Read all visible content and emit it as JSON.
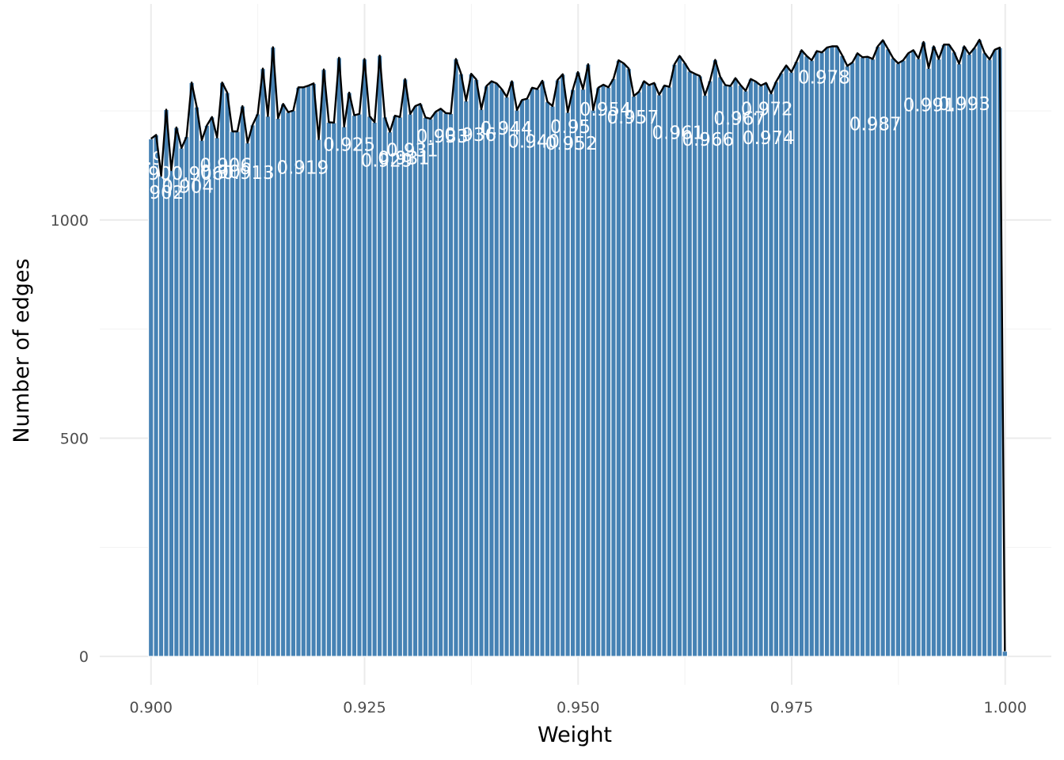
{
  "chart_data": {
    "type": "bar",
    "title": "",
    "xlabel": "Weight",
    "ylabel": "Number of edges",
    "xlim": [
      0.894,
      1.0054
    ],
    "ylim": [
      -65,
      1495
    ],
    "x_ticks": [
      0.9,
      0.925,
      0.95,
      0.975,
      1.0
    ],
    "x_tick_labels": [
      "0.900",
      "0.925",
      "0.950",
      "0.975",
      "1.000"
    ],
    "y_ticks": [
      0,
      500,
      1000
    ],
    "y_tick_labels": [
      "0",
      "500",
      "1000"
    ],
    "bin_width": 0.000595,
    "grid": true,
    "colors": {
      "bar": "#4682b4",
      "line": "#000000",
      "label": "#ffffff"
    },
    "bins": [
      [
        0.9,
        1186
      ],
      [
        0.900595,
        1195
      ],
      [
        0.90119,
        1101
      ],
      [
        0.901785,
        1253
      ],
      [
        0.90238,
        1114
      ],
      [
        0.902975,
        1212
      ],
      [
        0.90357,
        1165
      ],
      [
        0.904165,
        1191
      ],
      [
        0.90476,
        1315
      ],
      [
        0.905355,
        1259
      ],
      [
        0.90595,
        1183
      ],
      [
        0.906545,
        1217
      ],
      [
        0.90714,
        1236
      ],
      [
        0.907735,
        1189
      ],
      [
        0.90833,
        1315
      ],
      [
        0.908925,
        1292
      ],
      [
        0.90952,
        1203
      ],
      [
        0.910115,
        1203
      ],
      [
        0.91071,
        1261
      ],
      [
        0.911305,
        1177
      ],
      [
        0.9119,
        1218
      ],
      [
        0.912495,
        1243
      ],
      [
        0.91309,
        1347
      ],
      [
        0.913685,
        1238
      ],
      [
        0.91428,
        1396
      ],
      [
        0.914875,
        1233
      ],
      [
        0.91547,
        1266
      ],
      [
        0.916065,
        1247
      ],
      [
        0.91666,
        1251
      ],
      [
        0.917255,
        1304
      ],
      [
        0.91785,
        1304
      ],
      [
        0.918445,
        1308
      ],
      [
        0.91904,
        1313
      ],
      [
        0.919635,
        1185
      ],
      [
        0.92023,
        1345
      ],
      [
        0.920825,
        1224
      ],
      [
        0.92142,
        1223
      ],
      [
        0.922015,
        1372
      ],
      [
        0.92261,
        1214
      ],
      [
        0.923205,
        1292
      ],
      [
        0.9238,
        1240
      ],
      [
        0.924395,
        1243
      ],
      [
        0.92499,
        1369
      ],
      [
        0.925585,
        1238
      ],
      [
        0.92618,
        1224
      ],
      [
        0.926775,
        1377
      ],
      [
        0.92737,
        1236
      ],
      [
        0.927965,
        1202
      ],
      [
        0.92856,
        1239
      ],
      [
        0.929155,
        1236
      ],
      [
        0.92975,
        1323
      ],
      [
        0.930345,
        1243
      ],
      [
        0.93094,
        1261
      ],
      [
        0.931535,
        1266
      ],
      [
        0.93213,
        1235
      ],
      [
        0.932725,
        1232
      ],
      [
        0.93332,
        1248
      ],
      [
        0.933915,
        1255
      ],
      [
        0.93451,
        1245
      ],
      [
        0.935105,
        1244
      ],
      [
        0.9357,
        1369
      ],
      [
        0.936295,
        1335
      ],
      [
        0.93689,
        1273
      ],
      [
        0.937485,
        1335
      ],
      [
        0.93808,
        1322
      ],
      [
        0.938675,
        1254
      ],
      [
        0.93927,
        1307
      ],
      [
        0.939865,
        1318
      ],
      [
        0.94046,
        1313
      ],
      [
        0.941055,
        1300
      ],
      [
        0.94165,
        1282
      ],
      [
        0.942245,
        1318
      ],
      [
        0.94284,
        1252
      ],
      [
        0.943435,
        1275
      ],
      [
        0.94403,
        1278
      ],
      [
        0.944625,
        1303
      ],
      [
        0.94522,
        1300
      ],
      [
        0.945815,
        1319
      ],
      [
        0.94641,
        1271
      ],
      [
        0.947005,
        1261
      ],
      [
        0.9476,
        1321
      ],
      [
        0.948195,
        1334
      ],
      [
        0.94879,
        1247
      ],
      [
        0.949385,
        1299
      ],
      [
        0.94998,
        1339
      ],
      [
        0.950575,
        1300
      ],
      [
        0.95117,
        1357
      ],
      [
        0.951765,
        1252
      ],
      [
        0.95236,
        1303
      ],
      [
        0.952955,
        1310
      ],
      [
        0.95355,
        1304
      ],
      [
        0.954145,
        1324
      ],
      [
        0.95474,
        1366
      ],
      [
        0.955335,
        1359
      ],
      [
        0.95593,
        1347
      ],
      [
        0.956525,
        1284
      ],
      [
        0.95712,
        1294
      ],
      [
        0.957715,
        1318
      ],
      [
        0.95831,
        1309
      ],
      [
        0.958905,
        1314
      ],
      [
        0.9595,
        1287
      ],
      [
        0.960095,
        1308
      ],
      [
        0.96069,
        1305
      ],
      [
        0.961285,
        1357
      ],
      [
        0.96188,
        1376
      ],
      [
        0.962475,
        1360
      ],
      [
        0.96307,
        1341
      ],
      [
        0.963665,
        1335
      ],
      [
        0.96426,
        1330
      ],
      [
        0.964855,
        1286
      ],
      [
        0.96545,
        1319
      ],
      [
        0.966045,
        1367
      ],
      [
        0.96664,
        1328
      ],
      [
        0.967235,
        1309
      ],
      [
        0.96783,
        1307
      ],
      [
        0.968425,
        1325
      ],
      [
        0.96902,
        1309
      ],
      [
        0.969615,
        1296
      ],
      [
        0.97021,
        1323
      ],
      [
        0.970805,
        1317
      ],
      [
        0.9714,
        1308
      ],
      [
        0.971995,
        1314
      ],
      [
        0.97259,
        1290
      ],
      [
        0.973185,
        1317
      ],
      [
        0.97378,
        1337
      ],
      [
        0.974375,
        1354
      ],
      [
        0.97497,
        1339
      ],
      [
        0.975565,
        1363
      ],
      [
        0.97616,
        1389
      ],
      [
        0.976755,
        1376
      ],
      [
        0.97735,
        1366
      ],
      [
        0.977945,
        1387
      ],
      [
        0.97854,
        1384
      ],
      [
        0.979135,
        1395
      ],
      [
        0.97973,
        1398
      ],
      [
        0.980325,
        1398
      ],
      [
        0.98092,
        1377
      ],
      [
        0.981515,
        1353
      ],
      [
        0.98211,
        1361
      ],
      [
        0.982705,
        1382
      ],
      [
        0.9833,
        1373
      ],
      [
        0.983895,
        1374
      ],
      [
        0.98449,
        1369
      ],
      [
        0.985085,
        1398
      ],
      [
        0.98568,
        1412
      ],
      [
        0.986275,
        1392
      ],
      [
        0.98687,
        1371
      ],
      [
        0.987465,
        1359
      ],
      [
        0.98806,
        1366
      ],
      [
        0.988655,
        1382
      ],
      [
        0.98925,
        1389
      ],
      [
        0.989845,
        1370
      ],
      [
        0.99044,
        1408
      ],
      [
        0.991035,
        1348
      ],
      [
        0.99163,
        1398
      ],
      [
        0.992225,
        1369
      ],
      [
        0.99282,
        1402
      ],
      [
        0.993415,
        1402
      ],
      [
        0.99401,
        1385
      ],
      [
        0.994605,
        1358
      ],
      [
        0.9952,
        1398
      ],
      [
        0.995795,
        1380
      ],
      [
        0.99639,
        1394
      ],
      [
        0.996985,
        1413
      ],
      [
        0.99758,
        1383
      ],
      [
        0.998175,
        1368
      ],
      [
        0.99877,
        1390
      ],
      [
        0.999365,
        1395
      ],
      [
        0.99996,
        12
      ]
    ],
    "bar_labels": [
      [
        "0.9",
        0.8998,
        1141
      ],
      [
        "0.90",
        0.9,
        1107
      ],
      [
        "0.902",
        0.9008,
        1063
      ],
      [
        "0.904",
        0.9043,
        1077
      ],
      [
        "0.906",
        0.90545,
        1107
      ],
      [
        "0.90",
        0.9081,
        1110
      ],
      [
        "0.906",
        0.90875,
        1126
      ],
      [
        "0.913",
        0.9114,
        1109
      ],
      [
        "0.919",
        0.91775,
        1120
      ],
      [
        "0.925",
        0.9232,
        1173
      ],
      [
        "0.929",
        0.9276,
        1137
      ],
      [
        "0.931",
        0.9296,
        1142
      ],
      [
        "0.931",
        0.9306,
        1160
      ],
      [
        "0.933",
        0.9341,
        1192
      ],
      [
        "0.936",
        0.9374,
        1196
      ],
      [
        "0.940",
        0.9448,
        1180
      ],
      [
        "0.944",
        0.9416,
        1210
      ],
      [
        "0.952",
        0.9492,
        1176
      ],
      [
        "0.95",
        0.9491,
        1214
      ],
      [
        "0.954",
        0.9532,
        1254
      ],
      [
        "0.957",
        0.9564,
        1236
      ],
      [
        "0.961",
        0.9617,
        1200
      ],
      [
        "0.966",
        0.9652,
        1185
      ],
      [
        "0.967",
        0.9689,
        1233
      ],
      [
        "0.974",
        0.9723,
        1188
      ],
      [
        "0.972",
        0.9721,
        1255
      ],
      [
        "0.978",
        0.9788,
        1327
      ],
      [
        "0.987",
        0.9848,
        1220
      ],
      [
        "0.991",
        0.9911,
        1264
      ],
      [
        "0.993",
        0.9952,
        1266
      ]
    ]
  }
}
